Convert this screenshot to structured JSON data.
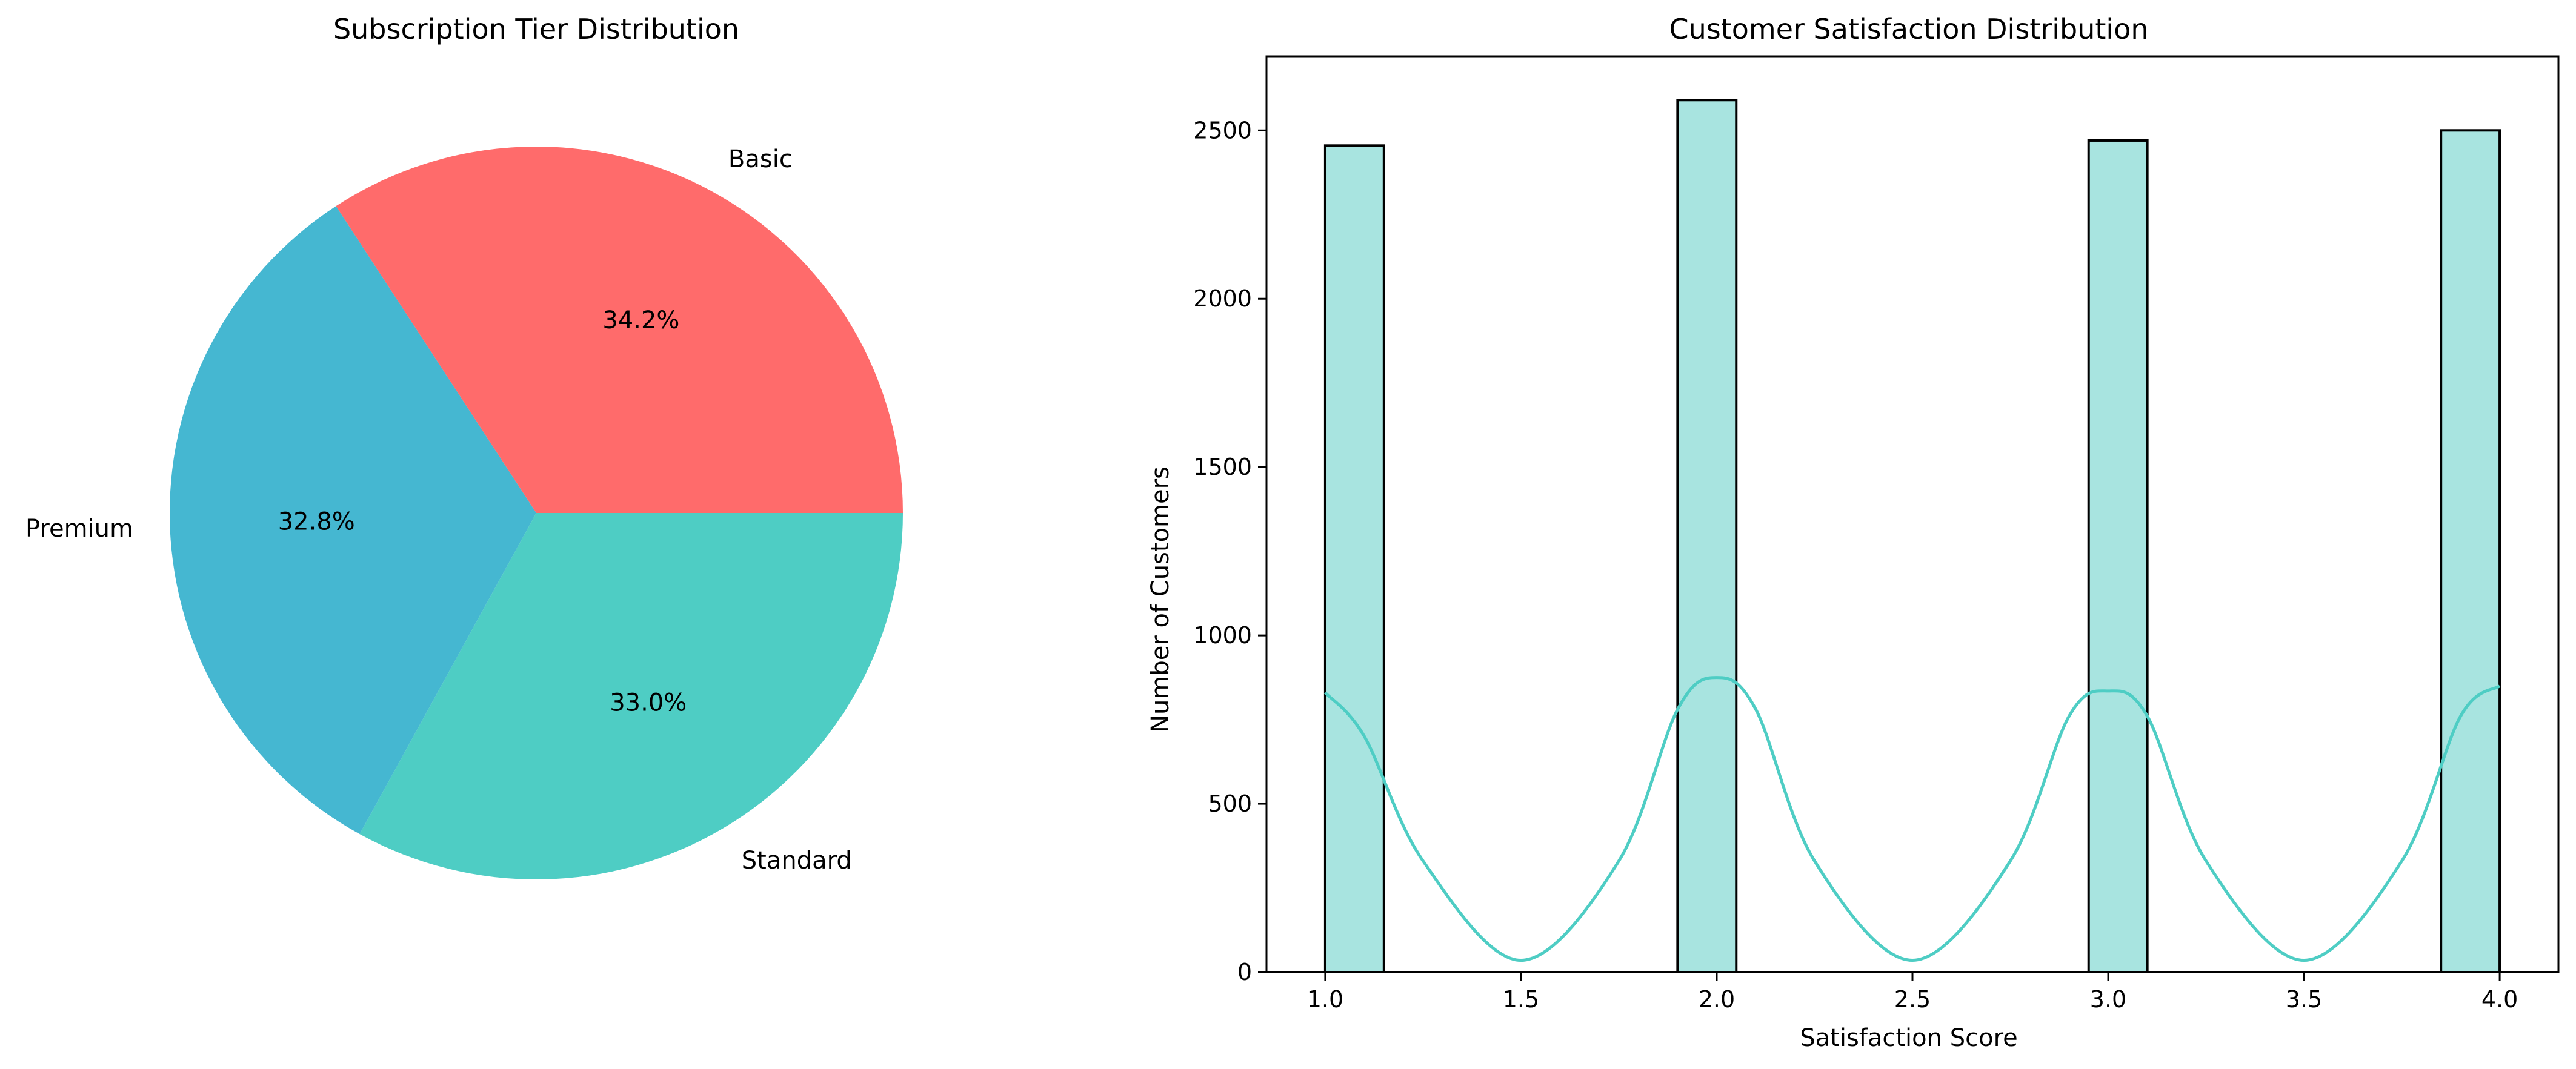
{
  "chart_data": [
    {
      "type": "pie",
      "title": "Subscription Tier Distribution",
      "slices": [
        {
          "label": "Basic",
          "percent": 34.2,
          "pct_label": "34.2%",
          "color": "#FF6B6B"
        },
        {
          "label": "Premium",
          "percent": 32.8,
          "pct_label": "32.8%",
          "color": "#45B7D1"
        },
        {
          "label": "Standard",
          "percent": 33.0,
          "pct_label": "33.0%",
          "color": "#4ECDC4"
        }
      ],
      "start_angle_deg": 0,
      "direction": "counterclockwise"
    },
    {
      "type": "bar",
      "subtype": "histogram_with_kde",
      "title": "Customer Satisfaction Distribution",
      "xlabel": "Satisfaction Score",
      "ylabel": "Number of Customers",
      "bins": [
        {
          "x0": 1.0,
          "x1": 1.15,
          "count": 2455
        },
        {
          "x0": 1.9,
          "x1": 2.05,
          "count": 2590
        },
        {
          "x0": 2.95,
          "x1": 3.1,
          "count": 2470
        },
        {
          "x0": 3.85,
          "x1": 4.0,
          "count": 2500
        }
      ],
      "bar_color": "#A8E4E0",
      "bar_edge_color": "#000000",
      "kde_color": "#4ECDC4",
      "kde": {
        "x": [
          1.0,
          1.1,
          1.25,
          1.5,
          1.75,
          1.9,
          2.0,
          2.1,
          2.25,
          2.5,
          2.75,
          2.9,
          3.0,
          3.1,
          3.25,
          3.5,
          3.75,
          3.9,
          4.0
        ],
        "y": [
          830,
          700,
          330,
          35,
          330,
          780,
          875,
          780,
          330,
          35,
          330,
          760,
          835,
          760,
          330,
          35,
          330,
          760,
          850
        ]
      },
      "xlim": [
        0.85,
        4.15
      ],
      "ylim": [
        0,
        2720
      ],
      "xticks": [
        1.0,
        1.5,
        2.0,
        2.5,
        3.0,
        3.5,
        4.0
      ],
      "xtick_labels": [
        "1.0",
        "1.5",
        "2.0",
        "2.5",
        "3.0",
        "3.5",
        "4.0"
      ],
      "yticks": [
        0,
        500,
        1000,
        1500,
        2000,
        2500
      ],
      "ytick_labels": [
        "0",
        "500",
        "1000",
        "1500",
        "2000",
        "2500"
      ],
      "grid": false,
      "legend": false
    }
  ]
}
